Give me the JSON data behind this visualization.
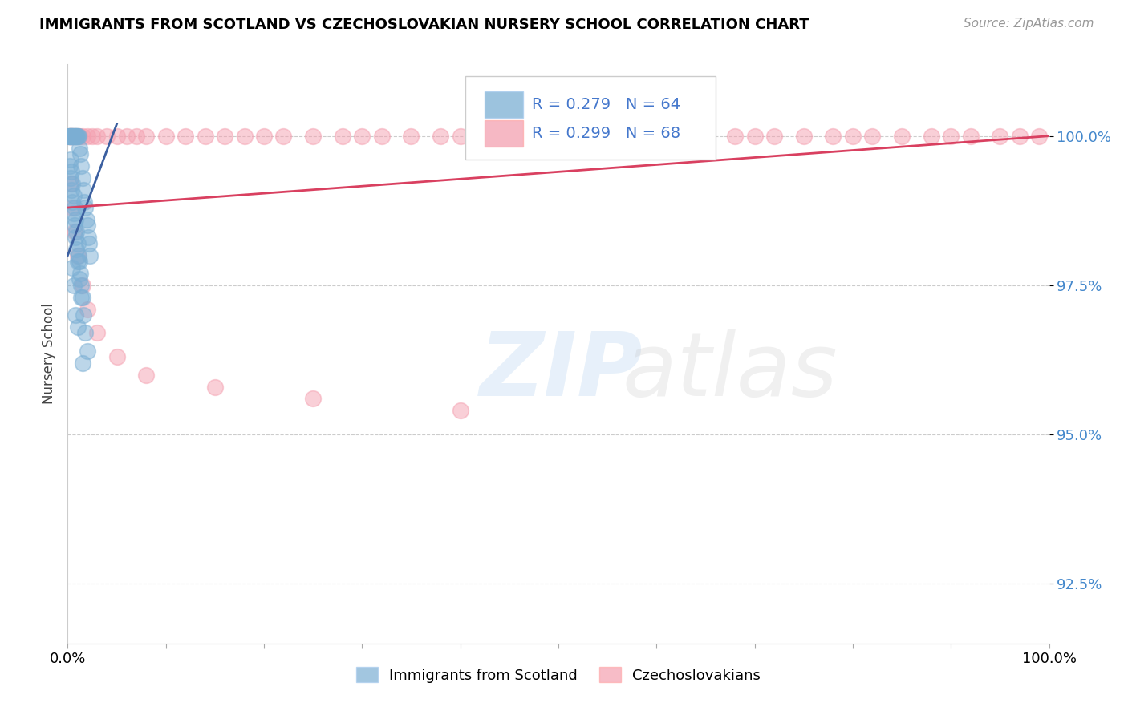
{
  "title": "IMMIGRANTS FROM SCOTLAND VS CZECHOSLOVAKIAN NURSERY SCHOOL CORRELATION CHART",
  "source": "Source: ZipAtlas.com",
  "ylabel": "Nursery School",
  "xlim": [
    0.0,
    100.0
  ],
  "ylim": [
    91.5,
    101.2
  ],
  "yticks": [
    92.5,
    95.0,
    97.5,
    100.0
  ],
  "ytick_labels": [
    "92.5%",
    "95.0%",
    "97.5%",
    "100.0%"
  ],
  "blue_R": 0.279,
  "blue_N": 64,
  "pink_R": 0.299,
  "pink_N": 68,
  "blue_color": "#7BAFD4",
  "pink_color": "#F4A0B0",
  "blue_line_color": "#3B5FA0",
  "pink_line_color": "#D94060",
  "legend_label_blue": "Immigrants from Scotland",
  "legend_label_pink": "Czechoslovakians",
  "blue_scatter_x": [
    0.1,
    0.15,
    0.2,
    0.25,
    0.3,
    0.35,
    0.4,
    0.45,
    0.5,
    0.55,
    0.6,
    0.65,
    0.7,
    0.75,
    0.8,
    0.85,
    0.9,
    0.95,
    1.0,
    1.1,
    1.2,
    1.3,
    1.4,
    1.5,
    1.6,
    1.7,
    1.8,
    1.9,
    2.0,
    2.1,
    2.2,
    2.3,
    0.3,
    0.4,
    0.5,
    0.6,
    0.7,
    0.8,
    0.9,
    1.0,
    1.1,
    1.2,
    1.3,
    1.4,
    1.5,
    0.2,
    0.3,
    0.4,
    0.5,
    0.6,
    0.7,
    0.8,
    0.9,
    1.0,
    1.2,
    1.4,
    1.6,
    1.8,
    2.0,
    0.5,
    0.6,
    0.8,
    1.0,
    1.5
  ],
  "blue_scatter_y": [
    100.0,
    100.0,
    100.0,
    100.0,
    100.0,
    100.0,
    100.0,
    100.0,
    100.0,
    100.0,
    100.0,
    100.0,
    100.0,
    100.0,
    100.0,
    100.0,
    100.0,
    100.0,
    100.0,
    100.0,
    99.8,
    99.7,
    99.5,
    99.3,
    99.1,
    98.9,
    98.8,
    98.6,
    98.5,
    98.3,
    98.2,
    98.0,
    99.6,
    99.4,
    99.2,
    99.0,
    98.8,
    98.6,
    98.4,
    98.2,
    98.0,
    97.9,
    97.7,
    97.5,
    97.3,
    99.5,
    99.3,
    99.1,
    98.9,
    98.7,
    98.5,
    98.3,
    98.1,
    97.9,
    97.6,
    97.3,
    97.0,
    96.7,
    96.4,
    97.8,
    97.5,
    97.0,
    96.8,
    96.2
  ],
  "pink_scatter_x": [
    0.1,
    0.2,
    0.3,
    0.4,
    0.5,
    0.6,
    0.8,
    1.0,
    1.2,
    1.5,
    2.0,
    2.5,
    3.0,
    4.0,
    5.0,
    6.0,
    7.0,
    8.0,
    10.0,
    12.0,
    14.0,
    16.0,
    18.0,
    20.0,
    22.0,
    25.0,
    28.0,
    30.0,
    32.0,
    35.0,
    38.0,
    40.0,
    42.0,
    45.0,
    48.0,
    50.0,
    52.0,
    55.0,
    58.0,
    60.0,
    62.0,
    65.0,
    68.0,
    70.0,
    72.0,
    75.0,
    78.0,
    80.0,
    82.0,
    85.0,
    88.0,
    90.0,
    92.0,
    95.0,
    97.0,
    99.0,
    0.3,
    0.5,
    0.7,
    1.0,
    1.5,
    2.0,
    3.0,
    5.0,
    8.0,
    15.0,
    25.0,
    40.0
  ],
  "pink_scatter_y": [
    100.0,
    100.0,
    100.0,
    100.0,
    100.0,
    100.0,
    100.0,
    100.0,
    100.0,
    100.0,
    100.0,
    100.0,
    100.0,
    100.0,
    100.0,
    100.0,
    100.0,
    100.0,
    100.0,
    100.0,
    100.0,
    100.0,
    100.0,
    100.0,
    100.0,
    100.0,
    100.0,
    100.0,
    100.0,
    100.0,
    100.0,
    100.0,
    100.0,
    100.0,
    100.0,
    100.0,
    100.0,
    100.0,
    100.0,
    100.0,
    100.0,
    100.0,
    100.0,
    100.0,
    100.0,
    100.0,
    100.0,
    100.0,
    100.0,
    100.0,
    100.0,
    100.0,
    100.0,
    100.0,
    100.0,
    100.0,
    99.2,
    98.8,
    98.4,
    98.0,
    97.5,
    97.1,
    96.7,
    96.3,
    96.0,
    95.8,
    95.6,
    95.4
  ],
  "blue_trendline_x": [
    0.0,
    5.0
  ],
  "blue_trendline_y": [
    98.0,
    100.2
  ],
  "pink_trendline_x": [
    0.0,
    100.0
  ],
  "pink_trendline_y": [
    98.8,
    100.0
  ]
}
